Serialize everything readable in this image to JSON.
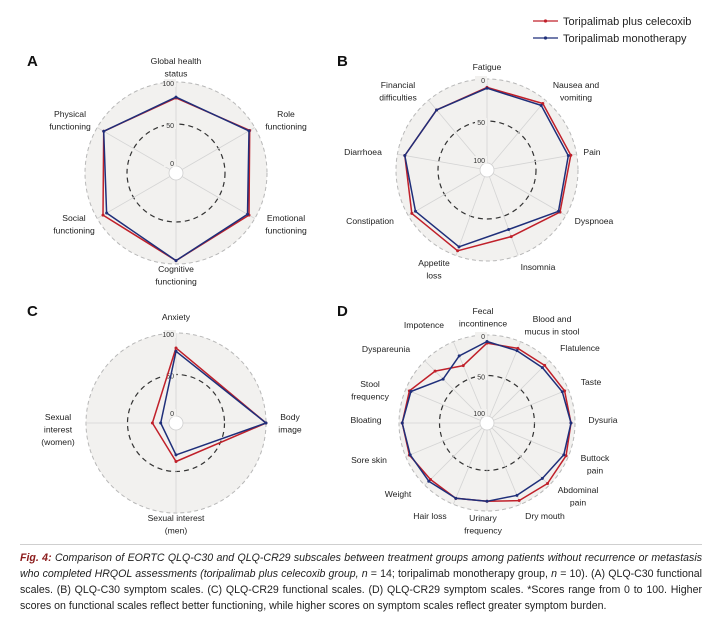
{
  "legend": {
    "entries": [
      {
        "name": "Toripalimab plus celecoxib",
        "color": "#c0202a"
      },
      {
        "name": "Toripalimab monotherapy",
        "color": "#1f2f7a"
      }
    ]
  },
  "chart_data": [
    {
      "type": "radar",
      "panel": "A",
      "scale": "functional",
      "tick_labels": [
        "0",
        "50",
        "100"
      ],
      "axes": [
        "Global health status",
        "Role functioning",
        "Emotional functioning",
        "Cognitive functioning",
        "Social functioning",
        "Physical functioning"
      ],
      "series": [
        {
          "name": "Toripalimab plus celecoxib",
          "values": [
            81,
            93,
            92,
            96,
            92,
            91
          ]
        },
        {
          "name": "Toripalimab monotherapy",
          "values": [
            82,
            92,
            90,
            96,
            87,
            91
          ]
        }
      ]
    },
    {
      "type": "radar",
      "panel": "B",
      "scale": "symptom",
      "tick_labels": [
        "0",
        "50",
        "100"
      ],
      "axes": [
        "Fatigue",
        "Nausea and vomiting",
        "Pain",
        "Dyspnoea",
        "Insomnia",
        "Appetite loss",
        "Constipation",
        "Diarrhoea",
        "Financial difficulties"
      ],
      "series": [
        {
          "name": "Toripalimab plus celecoxib",
          "values": [
            10,
            5,
            7,
            8,
            24,
            6,
            5,
            9,
            15
          ]
        },
        {
          "name": "Toripalimab monotherapy",
          "values": [
            11,
            8,
            10,
            10,
            33,
            11,
            10,
            9,
            15
          ]
        }
      ]
    },
    {
      "type": "radar",
      "panel": "C",
      "scale": "functional",
      "tick_labels": [
        "0",
        "50",
        "100"
      ],
      "axes": [
        "Anxiety",
        "Body image",
        "Sexual interest (men)",
        "Sexual interest (women)"
      ],
      "series": [
        {
          "name": "Toripalimab plus celecoxib",
          "values": [
            82,
            100,
            38,
            20
          ]
        },
        {
          "name": "Toripalimab monotherapy",
          "values": [
            78,
            100,
            30,
            10
          ]
        }
      ]
    },
    {
      "type": "radar",
      "panel": "D",
      "scale": "symptom",
      "tick_labels": [
        "0",
        "50",
        "100"
      ],
      "axes": [
        "Fecal incontinence",
        "Blood and mucus in stool",
        "Flatulence",
        "Taste",
        "Dysuria",
        "Buttock pain",
        "Abdominal pain",
        "Dry mouth",
        "Urinary frequency",
        "Hair loss",
        "Weight",
        "Sore skin",
        "Bloating",
        "Stool frequency",
        "Dyspareunia",
        "Impotence"
      ],
      "series": [
        {
          "name": "Toripalimab plus celecoxib",
          "values": [
            10,
            9,
            8,
            5,
            5,
            3,
            3,
            5,
            12,
            8,
            10,
            5,
            4,
            5,
            18,
            32
          ]
        },
        {
          "name": "Toripalimab monotherapy",
          "values": [
            8,
            12,
            12,
            8,
            5,
            6,
            12,
            12,
            12,
            8,
            7,
            6,
            4,
            7,
            32,
            19
          ]
        }
      ]
    }
  ],
  "caption": {
    "label": "Fig. 4:",
    "title": "Comparison of EORTC QLQ-C30 and QLQ-CR29 subscales between treatment groups among patients without recurrence or metastasis who completed HRQOL assessments (toripalimab plus celecoxib group,",
    "n1_label": "n",
    "n1_value": "= 14; toripalimab monotherapy group,",
    "n2_label": "n",
    "n2_value": "= 10).",
    "rest": "(A) QLQ-C30 functional scales. (B) QLQ-C30 symptom scales. (C) QLQ-CR29 functional scales. (D) QLQ-CR29 symptom scales. *Scores range from 0 to 100. Higher scores on functional scales reflect better functioning, while higher scores on symptom scales reflect greater symptom burden."
  }
}
